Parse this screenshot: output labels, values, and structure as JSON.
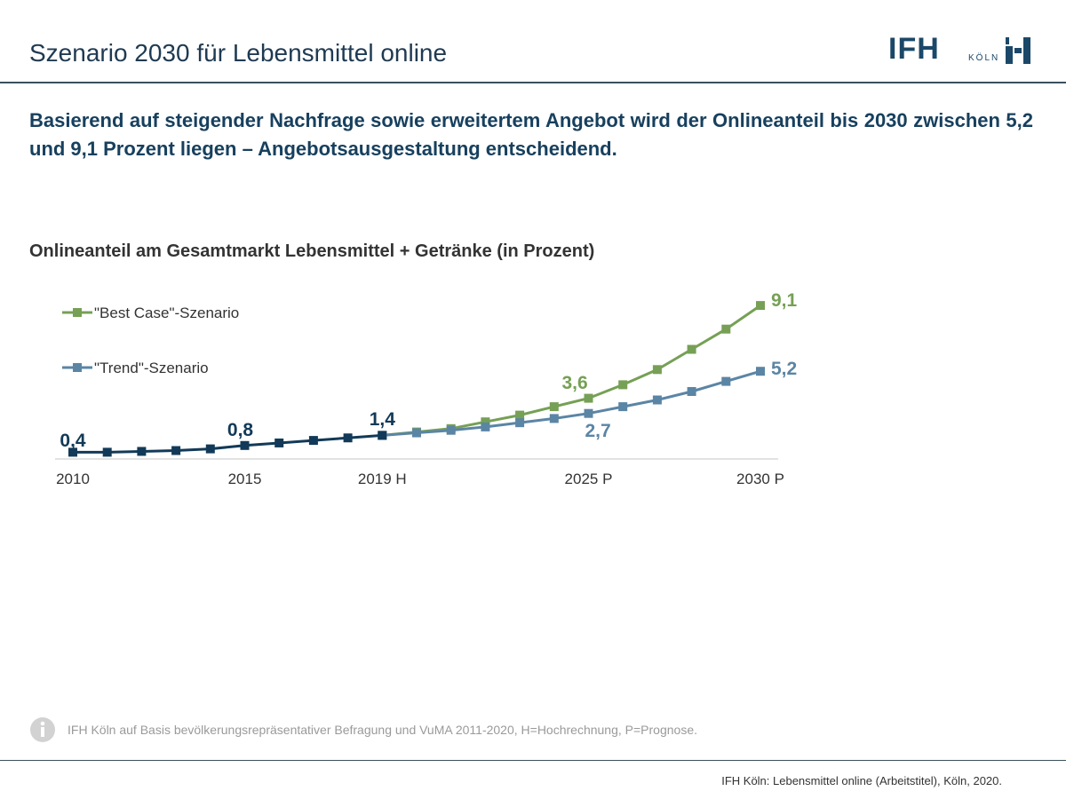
{
  "header": {
    "title": "Szenario 2030 für Lebensmittel online",
    "logo_text": "IFH",
    "logo_subtext": "KÖLN"
  },
  "headline": "Basierend auf steigender Nachfrage sowie erweitertem Angebot wird der Onlineanteil bis 2030 zwischen 5,2 und 9,1 Prozent liegen – Angebotsausgestaltung entscheidend.",
  "colors": {
    "best_case": "#76a055",
    "trend": "#5b85a5",
    "history": "#123a58",
    "title": "#1f3a52"
  },
  "chart_data": {
    "type": "line",
    "title": "Onlineanteil am Gesamtmarkt Lebensmittel + Getränke (in Prozent)",
    "x": [
      2010,
      2011,
      2012,
      2013,
      2014,
      2015,
      2016,
      2017,
      2018,
      2019,
      2020,
      2021,
      2022,
      2023,
      2024,
      2025,
      2026,
      2027,
      2028,
      2029,
      2030
    ],
    "tick_labels": [
      {
        "x": 2010,
        "label": "2010"
      },
      {
        "x": 2015,
        "label": "2015"
      },
      {
        "x": 2019,
        "label": "2019 H"
      },
      {
        "x": 2025,
        "label": "2025 P"
      },
      {
        "x": 2030,
        "label": "2030 P"
      }
    ],
    "ylim": [
      0,
      10
    ],
    "grid": false,
    "legend_position": "top-left",
    "history": {
      "x_end": 2019,
      "values": [
        0.4,
        0.4,
        0.45,
        0.5,
        0.6,
        0.8,
        0.95,
        1.1,
        1.25,
        1.4
      ]
    },
    "series": [
      {
        "name": "\"Best Case\"-Szenario",
        "color_key": "best_case",
        "values": [
          0.4,
          0.4,
          0.45,
          0.5,
          0.6,
          0.8,
          0.95,
          1.1,
          1.25,
          1.4,
          1.6,
          1.8,
          2.2,
          2.6,
          3.1,
          3.6,
          4.4,
          5.3,
          6.5,
          7.7,
          9.1
        ]
      },
      {
        "name": "\"Trend\"-Szenario",
        "color_key": "trend",
        "values": [
          0.4,
          0.4,
          0.45,
          0.5,
          0.6,
          0.8,
          0.95,
          1.1,
          1.25,
          1.4,
          1.55,
          1.7,
          1.9,
          2.15,
          2.4,
          2.7,
          3.1,
          3.5,
          4.0,
          4.6,
          5.2
        ]
      }
    ],
    "data_labels": [
      {
        "x": 2010,
        "value": "0,4",
        "color_key": "history"
      },
      {
        "x": 2015,
        "value": "0,8",
        "color_key": "history"
      },
      {
        "x": 2019,
        "value": "1,4",
        "color_key": "history"
      },
      {
        "x": 2025,
        "value": "3,6",
        "color_key": "best_case"
      },
      {
        "x": 2025,
        "value": "2,7",
        "color_key": "trend"
      },
      {
        "x": 2030,
        "value": "9,1",
        "color_key": "best_case"
      },
      {
        "x": 2030,
        "value": "5,2",
        "color_key": "trend"
      }
    ]
  },
  "source": "IFH Köln auf Basis bevölkerungsrepräsentativer Befragung und VuMA 2011-2020, H=Hochrechnung, P=Prognose.",
  "footer": "IFH Köln: Lebensmittel online (Arbeitstitel), Köln, 2020."
}
